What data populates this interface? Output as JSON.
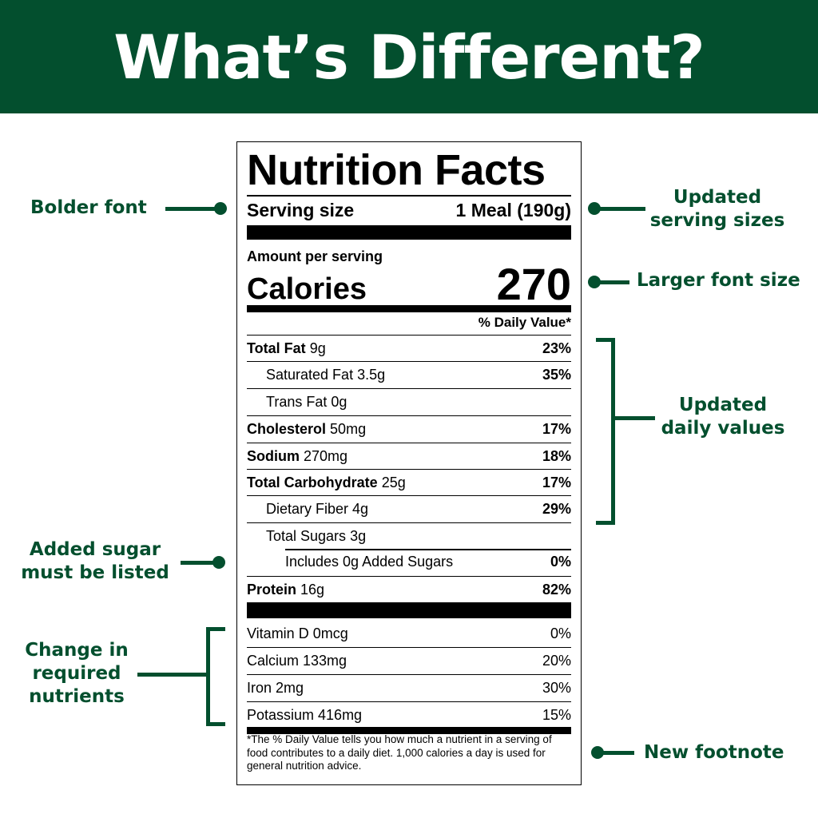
{
  "header": {
    "title": "What’s Different?"
  },
  "label": {
    "title": "Nutrition Facts",
    "serving_label": "Serving size",
    "serving_value": "1 Meal (190g)",
    "amount_per_serving": "Amount per serving",
    "calories_label": "Calories",
    "calories_value": "270",
    "dv_header": "% Daily Value*",
    "nutrients": [
      {
        "name": "Total Fat",
        "amount": "9g",
        "dv": "23%"
      },
      {
        "name": "Saturated Fat",
        "amount": "3.5g",
        "dv": "35%"
      },
      {
        "name": "Trans Fat",
        "amount": "0g",
        "dv": ""
      },
      {
        "name": "Cholesterol",
        "amount": "50mg",
        "dv": "17%"
      },
      {
        "name": "Sodium",
        "amount": "270mg",
        "dv": "18%"
      },
      {
        "name": "Total Carbohydrate",
        "amount": "25g",
        "dv": "17%"
      },
      {
        "name": "Dietary Fiber",
        "amount": "4g",
        "dv": "29%"
      },
      {
        "name": "Total Sugars",
        "amount": "3g",
        "dv": ""
      },
      {
        "name": "Includes 0g Added Sugars",
        "amount": "",
        "dv": "0%"
      },
      {
        "name": "Protein",
        "amount": "16g",
        "dv": "82%"
      }
    ],
    "vitamins": [
      {
        "name": "Vitamin D 0mcg",
        "dv": "0%"
      },
      {
        "name": "Calcium 133mg",
        "dv": "20%"
      },
      {
        "name": "Iron 2mg",
        "dv": "30%"
      },
      {
        "name": "Potassium 416mg",
        "dv": "15%"
      }
    ],
    "footnote": "*The % Daily Value tells you how much a nutrient in a serving of food contributes to a daily diet. 1,000 calories a day is used for general nutrition advice."
  },
  "annotations": {
    "bolder_font": "Bolder font",
    "updated_serving_line1": "Updated",
    "updated_serving_line2": "serving sizes",
    "larger_font": "Larger font size",
    "updated_dv_line1": "Updated",
    "updated_dv_line2": "daily values",
    "added_sugar_line1": "Added sugar",
    "added_sugar_line2": "must be listed",
    "change_line1": "Change in",
    "change_line2": "required",
    "change_line3": "nutrients",
    "new_footnote": "New footnote"
  },
  "colors": {
    "brand_green": "#034f2e"
  }
}
